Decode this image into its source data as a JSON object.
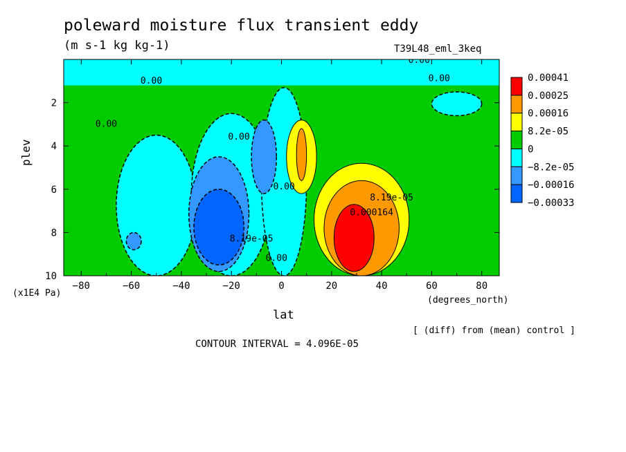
{
  "chart_data": {
    "type": "heatmap",
    "title": "poleward moisture flux transient eddy",
    "units_label": "(m s-1 kg kg-1)",
    "run_label": "T39L48_eml_3keq",
    "xlabel": "lat",
    "x_units": "(degrees_north)",
    "ylabel": "plev",
    "y_units": "(x1E4 Pa)",
    "xlim": [
      -87,
      87
    ],
    "ylim": [
      10,
      0
    ],
    "x_ticks": [
      -80,
      -60,
      -40,
      -20,
      0,
      20,
      40,
      60,
      80
    ],
    "y_ticks": [
      2,
      4,
      6,
      8,
      10
    ],
    "diff_note": "[ (diff) from (mean) control ]",
    "contour_interval": "CONTOUR INTERVAL = 4.096E-05",
    "colorbar": {
      "labels": [
        "0.00041",
        "0.00025",
        "0.00016",
        "8.2e-05",
        "0",
        "-8.2e-05",
        "-0.00016",
        "-0.00033"
      ],
      "colors": [
        "#ff0000",
        "#ff9900",
        "#ffff00",
        "#00cc00",
        "#00ffff",
        "#3399ff",
        "#0066ff"
      ]
    },
    "contour_labels": [
      {
        "text": "0.00",
        "lat": -52,
        "plev": 1.0
      },
      {
        "text": "0.00",
        "lat": 63,
        "plev": 0.9
      },
      {
        "text": "0.00",
        "lat": 55,
        "plev": 0.05
      },
      {
        "text": "0.00",
        "lat": -70,
        "plev": 3.0
      },
      {
        "text": "0.00",
        "lat": -17,
        "plev": 3.6
      },
      {
        "text": "0.00",
        "lat": 1,
        "plev": 5.9
      },
      {
        "text": "0.00",
        "lat": -2,
        "plev": 9.2
      },
      {
        "text": "8.19e-05",
        "lat": -12,
        "plev": 8.3
      },
      {
        "text": "8.19e-05",
        "lat": 44,
        "plev": 6.4
      },
      {
        "text": "0.000164",
        "lat": 36,
        "plev": 7.1
      }
    ],
    "regions": [
      {
        "level": 0,
        "lat": [
          -87,
          87
        ],
        "plev": [
          0,
          10
        ]
      },
      {
        "level": -1,
        "lat": [
          -87,
          87
        ],
        "plev": [
          0,
          1.2
        ]
      },
      {
        "level": -1,
        "lat": [
          -66,
          -34
        ],
        "plev": [
          3.5,
          10
        ]
      },
      {
        "level": -1,
        "lat": [
          -36,
          -4
        ],
        "plev": [
          2.5,
          10
        ]
      },
      {
        "level": -1,
        "lat": [
          -8,
          10
        ],
        "plev": [
          1.3,
          10
        ]
      },
      {
        "level": -1,
        "lat": [
          60,
          80
        ],
        "plev": [
          1.5,
          2.6
        ]
      },
      {
        "level": -2,
        "lat": [
          -37,
          -13
        ],
        "plev": [
          4.5,
          9.8
        ]
      },
      {
        "level": -2,
        "lat": [
          -12,
          -2
        ],
        "plev": [
          2.8,
          6.2
        ]
      },
      {
        "level": -2,
        "lat": [
          -62,
          -56
        ],
        "plev": [
          8.0,
          8.8
        ]
      },
      {
        "level": -3,
        "lat": [
          -35,
          -15
        ],
        "plev": [
          6.0,
          9.5
        ]
      },
      {
        "level": 1,
        "lat": [
          2,
          14
        ],
        "plev": [
          2.8,
          6.2
        ]
      },
      {
        "level": 1,
        "lat": [
          13,
          51
        ],
        "plev": [
          4.8,
          10
        ]
      },
      {
        "level": 2,
        "lat": [
          6,
          10
        ],
        "plev": [
          3.2,
          5.6
        ]
      },
      {
        "level": 2,
        "lat": [
          17,
          47
        ],
        "plev": [
          5.6,
          10
        ]
      },
      {
        "level": 3,
        "lat": [
          21,
          37
        ],
        "plev": [
          6.7,
          9.8
        ]
      }
    ]
  }
}
